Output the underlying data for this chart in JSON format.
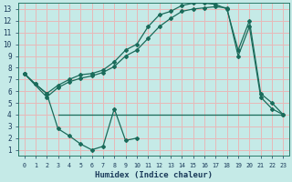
{
  "bg_color": "#c5eae7",
  "grid_color": "#e8b8b8",
  "line_color": "#1a6b5a",
  "xlabel": "Humidex (Indice chaleur)",
  "xlim": [
    -0.5,
    23.5
  ],
  "ylim": [
    0.5,
    13.5
  ],
  "xticks": [
    0,
    1,
    2,
    3,
    4,
    5,
    6,
    7,
    8,
    9,
    10,
    11,
    12,
    13,
    14,
    15,
    16,
    17,
    18,
    19,
    20,
    21,
    22,
    23
  ],
  "yticks": [
    1,
    2,
    3,
    4,
    5,
    6,
    7,
    8,
    9,
    10,
    11,
    12,
    13
  ],
  "line1_x": [
    0,
    1,
    2,
    3,
    4,
    5,
    6,
    7,
    8,
    9,
    10,
    11,
    12,
    13,
    14,
    15,
    16,
    17,
    18,
    19,
    20,
    21,
    22,
    23
  ],
  "line1_y": [
    7.5,
    6.6,
    5.8,
    6.5,
    7.0,
    7.4,
    7.5,
    7.8,
    8.5,
    9.5,
    10.0,
    11.5,
    12.5,
    12.8,
    13.3,
    13.5,
    13.5,
    13.4,
    13.0,
    9.5,
    12.0,
    5.8,
    5.0,
    4.0
  ],
  "line2_x": [
    0,
    2,
    3,
    4,
    5,
    6,
    7,
    8,
    9,
    10,
    11,
    12,
    13,
    14,
    15,
    16,
    17,
    18,
    19,
    20,
    21,
    22,
    23
  ],
  "line2_y": [
    7.5,
    5.5,
    6.3,
    6.8,
    7.1,
    7.3,
    7.6,
    8.1,
    9.0,
    9.5,
    10.5,
    11.5,
    12.2,
    12.8,
    13.0,
    13.1,
    13.2,
    13.1,
    9.0,
    11.5,
    5.5,
    4.5,
    4.0
  ],
  "line3_x": [
    3,
    9,
    19,
    23
  ],
  "line3_y": [
    4.0,
    4.0,
    4.0,
    4.0
  ],
  "line4_x": [
    0,
    1,
    2,
    3,
    4,
    5,
    6,
    7,
    8,
    9,
    10
  ],
  "line4_y": [
    7.5,
    6.6,
    5.8,
    2.8,
    2.2,
    1.5,
    1.0,
    1.3,
    4.5,
    1.8,
    2.0
  ]
}
